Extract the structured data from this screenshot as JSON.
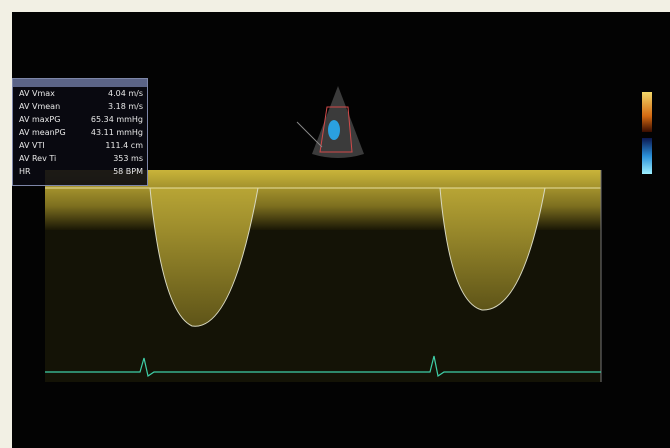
{
  "measurements": [
    {
      "label": "AV Vmax",
      "value": "4.04 m/s"
    },
    {
      "label": "AV Vmean",
      "value": "3.18 m/s"
    },
    {
      "label": "AV maxPG",
      "value": "65.34 mmHg"
    },
    {
      "label": "AV meanPG",
      "value": "43.11 mmHg"
    },
    {
      "label": "AV VTI",
      "value": "111.4 cm"
    },
    {
      "label": "AV Rev Ti",
      "value": "353 ms"
    },
    {
      "label": "HR",
      "value": "58 BPM"
    }
  ]
}
